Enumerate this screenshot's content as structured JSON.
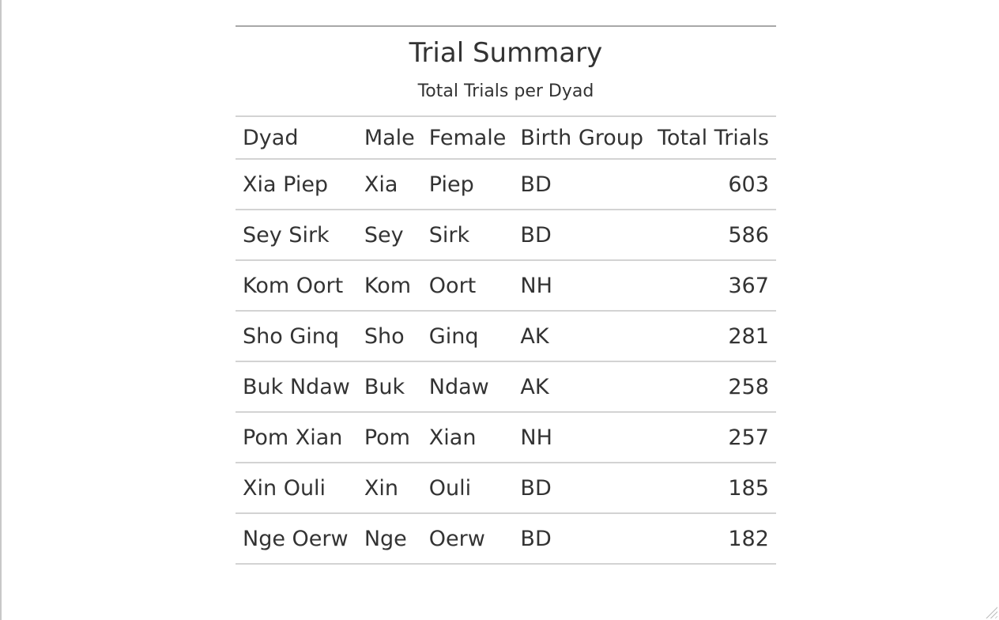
{
  "table": {
    "title": "Trial Summary",
    "subtitle": "Total Trials per Dyad",
    "columns": [
      "Dyad",
      "Male",
      "Female",
      "Birth Group",
      "Total Trials"
    ],
    "rows": [
      {
        "dyad": "Xia Piep",
        "male": "Xia",
        "female": "Piep",
        "birth_group": "BD",
        "total_trials": "603"
      },
      {
        "dyad": "Sey Sirk",
        "male": "Sey",
        "female": "Sirk",
        "birth_group": "BD",
        "total_trials": "586"
      },
      {
        "dyad": "Kom Oort",
        "male": "Kom",
        "female": "Oort",
        "birth_group": "NH",
        "total_trials": "367"
      },
      {
        "dyad": "Sho Ginq",
        "male": "Sho",
        "female": "Ginq",
        "birth_group": "AK",
        "total_trials": "281"
      },
      {
        "dyad": "Buk Ndaw",
        "male": "Buk",
        "female": "Ndaw",
        "birth_group": "AK",
        "total_trials": "258"
      },
      {
        "dyad": "Pom Xian",
        "male": "Pom",
        "female": "Xian",
        "birth_group": "NH",
        "total_trials": "257"
      },
      {
        "dyad": "Xin Ouli",
        "male": "Xin",
        "female": "Ouli",
        "birth_group": "BD",
        "total_trials": "185"
      },
      {
        "dyad": "Nge Oerw",
        "male": "Nge",
        "female": "Oerw",
        "birth_group": "BD",
        "total_trials": "182"
      }
    ]
  },
  "colors": {
    "text": "#333333",
    "rule": "#d3d3d3",
    "top_rule": "#a8a8a8",
    "background": "#ffffff"
  }
}
